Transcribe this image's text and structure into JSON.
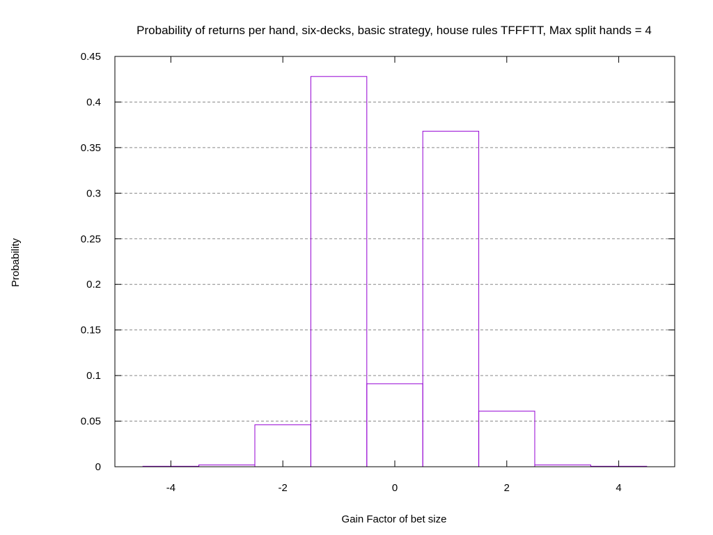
{
  "chart_data": {
    "type": "bar",
    "title": "Probability of returns per hand, six-decks, basic strategy, house rules TFFFTT, Max split hands = 4",
    "xlabel": "Gain Factor of bet size",
    "ylabel": "Probability",
    "xlim": [
      -5,
      5
    ],
    "ylim": [
      0,
      0.45
    ],
    "xticks": [
      "-4",
      "-2",
      "0",
      "2",
      "4"
    ],
    "xtick_values": [
      -4,
      -2,
      0,
      2,
      4
    ],
    "yticks": [
      "0",
      "0.05",
      "0.1",
      "0.15",
      "0.2",
      "0.25",
      "0.3",
      "0.35",
      "0.4",
      "0.45"
    ],
    "ytick_values": [
      0,
      0.05,
      0.1,
      0.15,
      0.2,
      0.25,
      0.3,
      0.35,
      0.4,
      0.45
    ],
    "grid": "horizontal dashed",
    "bar_color": "#9400d3",
    "x": [
      -4,
      -3,
      -2,
      -1,
      0,
      1,
      2,
      3,
      4
    ],
    "values": [
      0.0005,
      0.002,
      0.046,
      0.428,
      0.091,
      0.368,
      0.061,
      0.002,
      0.0005
    ]
  }
}
